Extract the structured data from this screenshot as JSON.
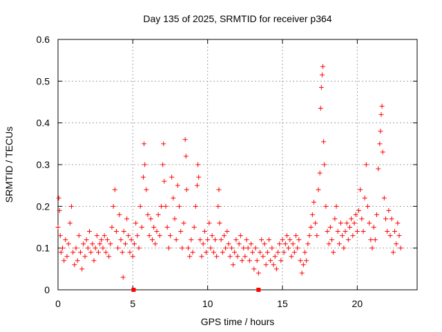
{
  "chart_data": {
    "type": "scatter",
    "title": "Day 135 of 2025, SRMTID for receiver p364",
    "xlabel": "GPS time / hours",
    "ylabel": "SRMTID / TECUs",
    "xlim": [
      0,
      24
    ],
    "ylim": [
      0,
      0.6
    ],
    "xticks": [
      0,
      5,
      10,
      15,
      20
    ],
    "yticks": [
      0,
      0.1,
      0.2,
      0.3,
      0.4,
      0.5,
      0.6
    ],
    "xtick_labels": [
      "0",
      "5",
      "10",
      "15",
      "20"
    ],
    "ytick_labels": [
      "0",
      "0.1",
      "0.2",
      "0.3",
      "0.4",
      "0.5",
      "0.6"
    ],
    "grid": true,
    "marker": "plus",
    "color": "#ff0000",
    "series": [
      {
        "name": "SRMTID",
        "points": [
          [
            0.0,
            0.15
          ],
          [
            0.05,
            0.22
          ],
          [
            0.1,
            0.19
          ],
          [
            0.15,
            0.13
          ],
          [
            0.2,
            0.09
          ],
          [
            0.3,
            0.1
          ],
          [
            0.4,
            0.07
          ],
          [
            0.5,
            0.12
          ],
          [
            0.6,
            0.08
          ],
          [
            0.7,
            0.11
          ],
          [
            0.8,
            0.16
          ],
          [
            0.9,
            0.2
          ],
          [
            1.0,
            0.09
          ],
          [
            1.1,
            0.06
          ],
          [
            1.2,
            0.1
          ],
          [
            1.3,
            0.07
          ],
          [
            1.4,
            0.13
          ],
          [
            1.5,
            0.09
          ],
          [
            1.6,
            0.05
          ],
          [
            1.7,
            0.11
          ],
          [
            1.8,
            0.08
          ],
          [
            1.9,
            0.12
          ],
          [
            2.0,
            0.1
          ],
          [
            2.1,
            0.14
          ],
          [
            2.2,
            0.09
          ],
          [
            2.3,
            0.11
          ],
          [
            2.4,
            0.07
          ],
          [
            2.5,
            0.1
          ],
          [
            2.6,
            0.13
          ],
          [
            2.7,
            0.09
          ],
          [
            2.8,
            0.11
          ],
          [
            2.9,
            0.12
          ],
          [
            3.0,
            0.1
          ],
          [
            3.1,
            0.13
          ],
          [
            3.2,
            0.09
          ],
          [
            3.3,
            0.12
          ],
          [
            3.4,
            0.08
          ],
          [
            3.5,
            0.11
          ],
          [
            3.6,
            0.15
          ],
          [
            3.7,
            0.2
          ],
          [
            3.8,
            0.24
          ],
          [
            3.9,
            0.14
          ],
          [
            4.0,
            0.1
          ],
          [
            4.1,
            0.18
          ],
          [
            4.2,
            0.12
          ],
          [
            4.3,
            0.09
          ],
          [
            4.35,
            0.03
          ],
          [
            4.4,
            0.14
          ],
          [
            4.5,
            0.11
          ],
          [
            4.6,
            0.17
          ],
          [
            4.7,
            0.13
          ],
          [
            4.8,
            0.09
          ],
          [
            4.9,
            0.12
          ],
          [
            5.0,
            0.08
          ],
          [
            5.1,
            0.11
          ],
          [
            5.2,
            0.16
          ],
          [
            5.3,
            0.13
          ],
          [
            5.4,
            0.1
          ],
          [
            5.5,
            0.2
          ],
          [
            5.6,
            0.15
          ],
          [
            5.7,
            0.27
          ],
          [
            5.75,
            0.35
          ],
          [
            5.8,
            0.3
          ],
          [
            5.9,
            0.24
          ],
          [
            6.0,
            0.18
          ],
          [
            6.1,
            0.13
          ],
          [
            6.2,
            0.17
          ],
          [
            6.3,
            0.12
          ],
          [
            6.4,
            0.15
          ],
          [
            6.5,
            0.11
          ],
          [
            6.6,
            0.14
          ],
          [
            6.7,
            0.18
          ],
          [
            6.8,
            0.13
          ],
          [
            6.9,
            0.2
          ],
          [
            7.0,
            0.3
          ],
          [
            7.05,
            0.35
          ],
          [
            7.1,
            0.26
          ],
          [
            7.2,
            0.2
          ],
          [
            7.3,
            0.15
          ],
          [
            7.4,
            0.1
          ],
          [
            7.5,
            0.13
          ],
          [
            7.6,
            0.27
          ],
          [
            7.7,
            0.22
          ],
          [
            7.8,
            0.17
          ],
          [
            7.9,
            0.12
          ],
          [
            8.0,
            0.25
          ],
          [
            8.1,
            0.2
          ],
          [
            8.2,
            0.14
          ],
          [
            8.3,
            0.1
          ],
          [
            8.4,
            0.16
          ],
          [
            8.5,
            0.36
          ],
          [
            8.55,
            0.32
          ],
          [
            8.6,
            0.24
          ],
          [
            8.7,
            0.1
          ],
          [
            8.8,
            0.08
          ],
          [
            8.9,
            0.12
          ],
          [
            9.0,
            0.09
          ],
          [
            9.1,
            0.15
          ],
          [
            9.2,
            0.2
          ],
          [
            9.3,
            0.25
          ],
          [
            9.35,
            0.3
          ],
          [
            9.4,
            0.27
          ],
          [
            9.5,
            0.12
          ],
          [
            9.6,
            0.08
          ],
          [
            9.7,
            0.11
          ],
          [
            9.8,
            0.14
          ],
          [
            9.9,
            0.09
          ],
          [
            10.0,
            0.12
          ],
          [
            10.1,
            0.16
          ],
          [
            10.2,
            0.1
          ],
          [
            10.3,
            0.13
          ],
          [
            10.4,
            0.09
          ],
          [
            10.5,
            0.12
          ],
          [
            10.6,
            0.08
          ],
          [
            10.7,
            0.2
          ],
          [
            10.75,
            0.24
          ],
          [
            10.8,
            0.16
          ],
          [
            10.9,
            0.12
          ],
          [
            11.0,
            0.09
          ],
          [
            11.1,
            0.13
          ],
          [
            11.2,
            0.1
          ],
          [
            11.3,
            0.14
          ],
          [
            11.4,
            0.11
          ],
          [
            11.5,
            0.08
          ],
          [
            11.6,
            0.1
          ],
          [
            11.7,
            0.06
          ],
          [
            11.8,
            0.09
          ],
          [
            11.9,
            0.12
          ],
          [
            12.0,
            0.08
          ],
          [
            12.1,
            0.11
          ],
          [
            12.2,
            0.13
          ],
          [
            12.3,
            0.07
          ],
          [
            12.4,
            0.1
          ],
          [
            12.5,
            0.08
          ],
          [
            12.6,
            0.12
          ],
          [
            12.7,
            0.1
          ],
          [
            12.8,
            0.07
          ],
          [
            12.9,
            0.11
          ],
          [
            13.0,
            0.09
          ],
          [
            13.1,
            0.05
          ],
          [
            13.2,
            0.1
          ],
          [
            13.3,
            0.07
          ],
          [
            13.4,
            0.04
          ],
          [
            13.5,
            0.09
          ],
          [
            13.6,
            0.12
          ],
          [
            13.7,
            0.08
          ],
          [
            13.8,
            0.11
          ],
          [
            13.9,
            0.06
          ],
          [
            14.0,
            0.09
          ],
          [
            14.1,
            0.12
          ],
          [
            14.2,
            0.07
          ],
          [
            14.3,
            0.1
          ],
          [
            14.4,
            0.06
          ],
          [
            14.5,
            0.08
          ],
          [
            14.6,
            0.05
          ],
          [
            14.7,
            0.09
          ],
          [
            14.8,
            0.11
          ],
          [
            14.9,
            0.07
          ],
          [
            15.0,
            0.12
          ],
          [
            15.1,
            0.09
          ],
          [
            15.2,
            0.11
          ],
          [
            15.3,
            0.13
          ],
          [
            15.4,
            0.1
          ],
          [
            15.5,
            0.12
          ],
          [
            15.6,
            0.08
          ],
          [
            15.7,
            0.11
          ],
          [
            15.8,
            0.09
          ],
          [
            15.9,
            0.13
          ],
          [
            16.0,
            0.1
          ],
          [
            16.1,
            0.12
          ],
          [
            16.2,
            0.07
          ],
          [
            16.3,
            0.04
          ],
          [
            16.4,
            0.06
          ],
          [
            16.5,
            0.09
          ],
          [
            16.6,
            0.07
          ],
          [
            16.7,
            0.11
          ],
          [
            16.8,
            0.13
          ],
          [
            16.9,
            0.15
          ],
          [
            17.0,
            0.18
          ],
          [
            17.1,
            0.21
          ],
          [
            17.2,
            0.16
          ],
          [
            17.3,
            0.13
          ],
          [
            17.4,
            0.24
          ],
          [
            17.5,
            0.28
          ],
          [
            17.55,
            0.435
          ],
          [
            17.6,
            0.485
          ],
          [
            17.65,
            0.515
          ],
          [
            17.7,
            0.535
          ],
          [
            17.75,
            0.355
          ],
          [
            17.8,
            0.3
          ],
          [
            17.9,
            0.2
          ],
          [
            18.0,
            0.14
          ],
          [
            18.1,
            0.11
          ],
          [
            18.2,
            0.15
          ],
          [
            18.3,
            0.12
          ],
          [
            18.4,
            0.09
          ],
          [
            18.5,
            0.17
          ],
          [
            18.6,
            0.2
          ],
          [
            18.7,
            0.14
          ],
          [
            18.8,
            0.11
          ],
          [
            18.9,
            0.16
          ],
          [
            19.0,
            0.13
          ],
          [
            19.1,
            0.1
          ],
          [
            19.2,
            0.14
          ],
          [
            19.3,
            0.16
          ],
          [
            19.4,
            0.12
          ],
          [
            19.5,
            0.15
          ],
          [
            19.6,
            0.17
          ],
          [
            19.7,
            0.13
          ],
          [
            19.8,
            0.16
          ],
          [
            19.9,
            0.18
          ],
          [
            20.0,
            0.14
          ],
          [
            20.1,
            0.19
          ],
          [
            20.2,
            0.24
          ],
          [
            20.3,
            0.17
          ],
          [
            20.4,
            0.14
          ],
          [
            20.5,
            0.22
          ],
          [
            20.6,
            0.3
          ],
          [
            20.7,
            0.2
          ],
          [
            20.8,
            0.16
          ],
          [
            20.9,
            0.12
          ],
          [
            21.0,
            0.1
          ],
          [
            21.1,
            0.15
          ],
          [
            21.2,
            0.12
          ],
          [
            21.3,
            0.18
          ],
          [
            21.4,
            0.29
          ],
          [
            21.5,
            0.35
          ],
          [
            21.55,
            0.38
          ],
          [
            21.6,
            0.42
          ],
          [
            21.65,
            0.44
          ],
          [
            21.7,
            0.33
          ],
          [
            21.8,
            0.22
          ],
          [
            21.9,
            0.17
          ],
          [
            22.0,
            0.14
          ],
          [
            22.1,
            0.19
          ],
          [
            22.2,
            0.13
          ],
          [
            22.3,
            0.17
          ],
          [
            22.4,
            0.09
          ],
          [
            22.5,
            0.14
          ],
          [
            22.6,
            0.11
          ],
          [
            22.7,
            0.16
          ],
          [
            22.8,
            0.13
          ],
          [
            22.9,
            0.1
          ]
        ]
      }
    ],
    "gap_markers_x": [
      5.05,
      13.4
    ]
  }
}
